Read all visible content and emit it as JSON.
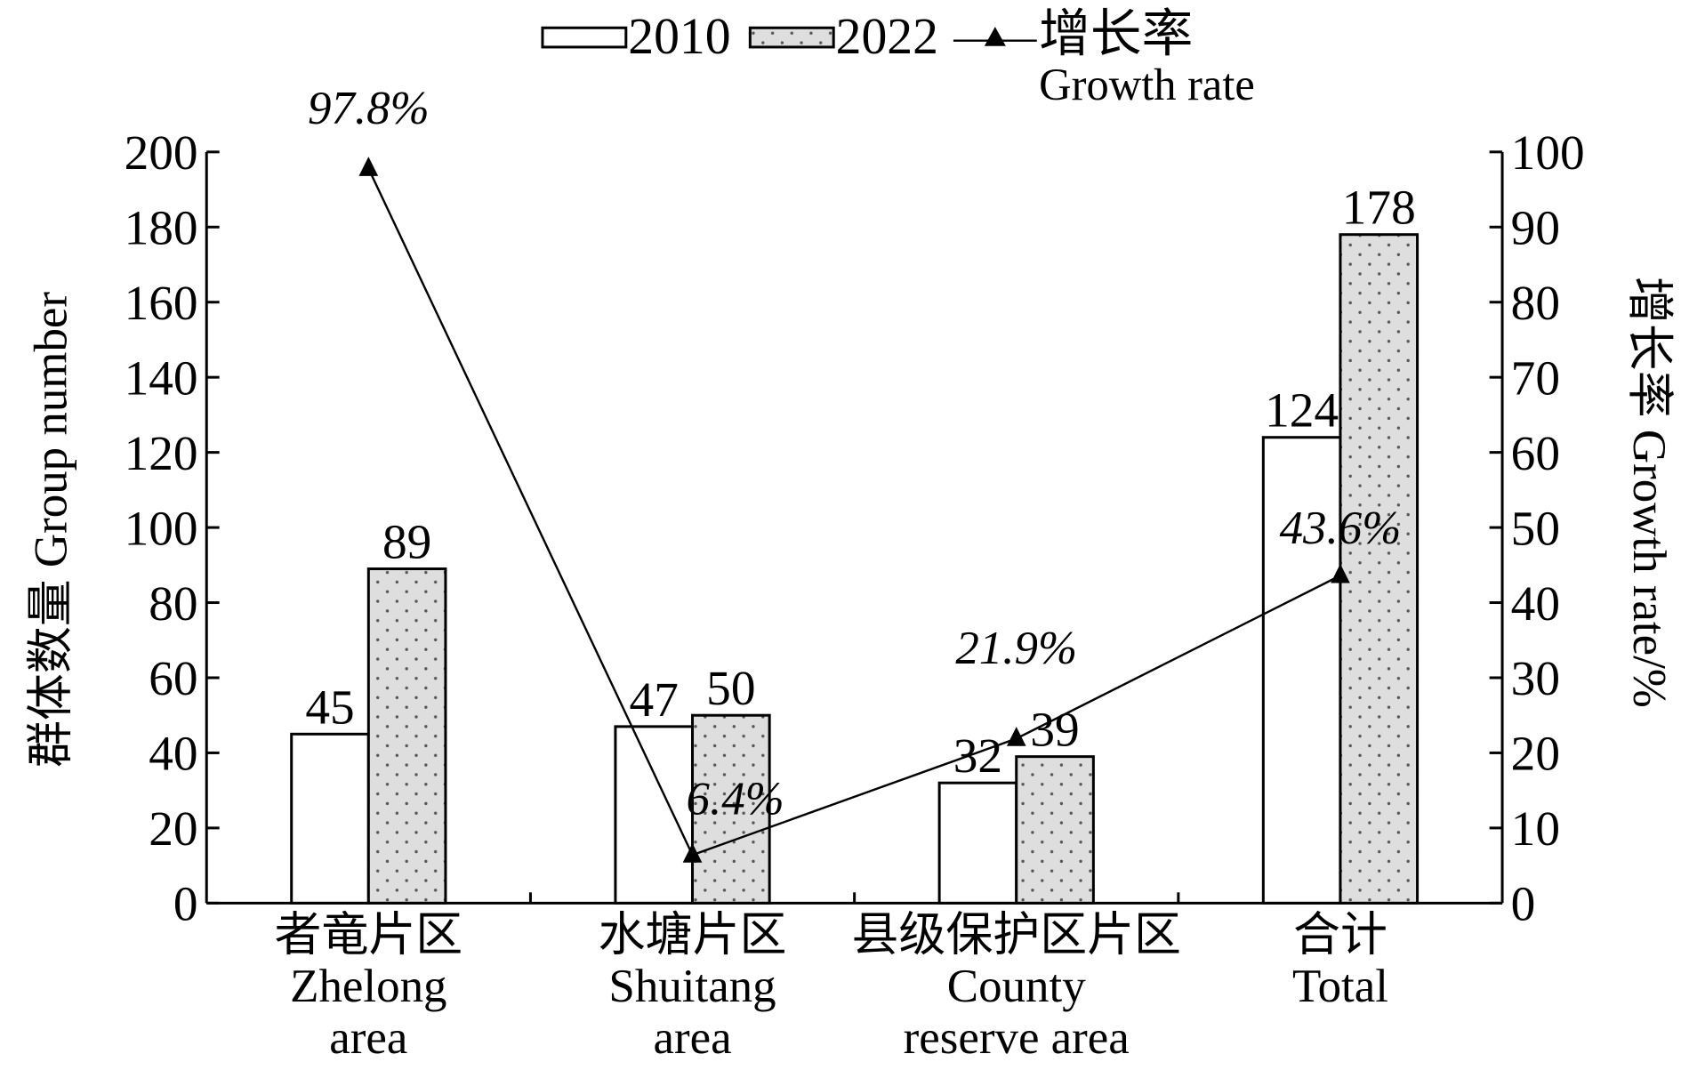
{
  "legend": {
    "series_2010": "2010",
    "series_2022": "2022",
    "growth_cn": "增长率",
    "growth_en": "Growth rate"
  },
  "y_left_title": "群体数量 Group number",
  "y_right_title": "增长率 Growth rate/%",
  "categories": [
    {
      "cn": "者竜片区",
      "en": [
        "Zhelong",
        "area"
      ]
    },
    {
      "cn": "水塘片区",
      "en": [
        "Shuitang",
        "area"
      ]
    },
    {
      "cn": "县级保护区片区",
      "en": [
        "County",
        "reserve area"
      ]
    },
    {
      "cn": "合计",
      "en": [
        "Total"
      ]
    }
  ],
  "chart_data": {
    "type": "bar",
    "categories": [
      "者竜片区 Zhelong area",
      "水塘片区 Shuitang area",
      "县级保护区片区 County reserve area",
      "合计 Total"
    ],
    "series": [
      {
        "name": "2010",
        "values": [
          45,
          47,
          32,
          124
        ]
      },
      {
        "name": "2022",
        "values": [
          89,
          50,
          39,
          178
        ]
      },
      {
        "name": "增长率 Growth rate",
        "type": "line",
        "axis": "right",
        "values": [
          97.8,
          6.4,
          21.9,
          43.6
        ],
        "labels": [
          "97.8%",
          "6.4%",
          "21.9%",
          "43.6%"
        ]
      }
    ],
    "y_left": {
      "min": 0,
      "max": 200,
      "ticks": [
        0,
        20,
        40,
        60,
        80,
        100,
        120,
        140,
        160,
        180,
        200
      ]
    },
    "y_right": {
      "min": 0,
      "max": 100,
      "ticks": [
        0,
        10,
        20,
        30,
        40,
        50,
        60,
        70,
        80,
        90,
        100
      ]
    },
    "legend_position": "top-center",
    "grid": false
  }
}
